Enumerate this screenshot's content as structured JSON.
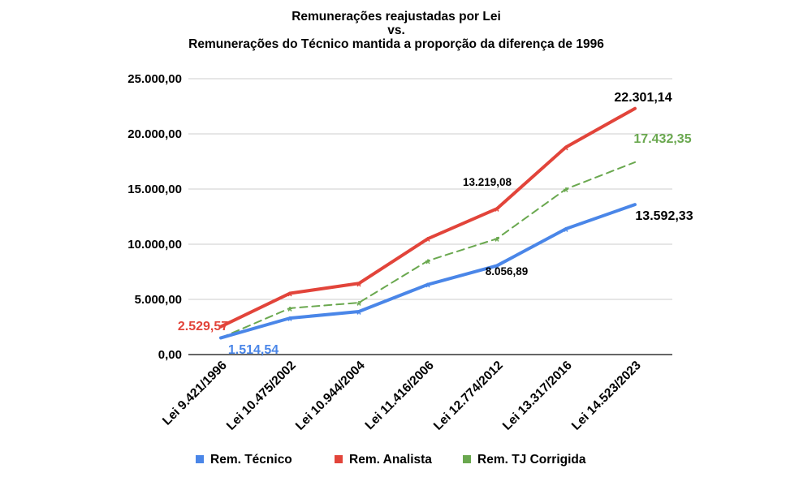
{
  "chart_data": {
    "type": "line",
    "title": [
      "Remunerações reajustadas por Lei",
      "vs.",
      "Remunerações do Técnico mantida a proporção da diferença de 1996"
    ],
    "categories": [
      "Lei 9.421/1996",
      "Lei 10.475/2002",
      "Lei 10.944/2004",
      "Lei 11.416/2006",
      "Lei 12.774/2012",
      "Lei 13.317/2016",
      "Lei 14.523/2023"
    ],
    "ylim": [
      0,
      25000
    ],
    "yticks": [
      0,
      5000,
      10000,
      15000,
      20000,
      25000
    ],
    "ytick_labels": [
      "0,00",
      "5.000,00",
      "10.000,00",
      "15.000,00",
      "20.000,00",
      "25.000,00"
    ],
    "grid": true,
    "legend_position": "bottom",
    "series": [
      {
        "name": "Rem. Técnico",
        "color": "#4a86e8",
        "style": "solid",
        "values": [
          1514.54,
          3300,
          3900,
          6350,
          8056.89,
          11400,
          13592.33
        ]
      },
      {
        "name": "Rem. Analista",
        "color": "#e2443a",
        "style": "solid",
        "values": [
          2529.57,
          5550,
          6450,
          10500,
          13219.08,
          18800,
          22301.14
        ]
      },
      {
        "name": "Rem. TJ Corrigida",
        "color": "#6aa84f",
        "style": "dashed",
        "values": [
          1514.54,
          4200,
          4700,
          8500,
          10500,
          15000,
          17432.35
        ]
      }
    ],
    "annotations": [
      {
        "text": "22.301,14",
        "color": "#000000"
      },
      {
        "text": "17.432,35",
        "color": "#6aa84f"
      },
      {
        "text": "13.219,08",
        "color": "#000000"
      },
      {
        "text": "13.592,33",
        "color": "#000000"
      },
      {
        "text": "8.056,89",
        "color": "#000000"
      },
      {
        "text": "2.529,57",
        "color": "#e2443a"
      },
      {
        "text": "1.514,54",
        "color": "#4a86e8"
      }
    ],
    "point_marker": "*"
  }
}
